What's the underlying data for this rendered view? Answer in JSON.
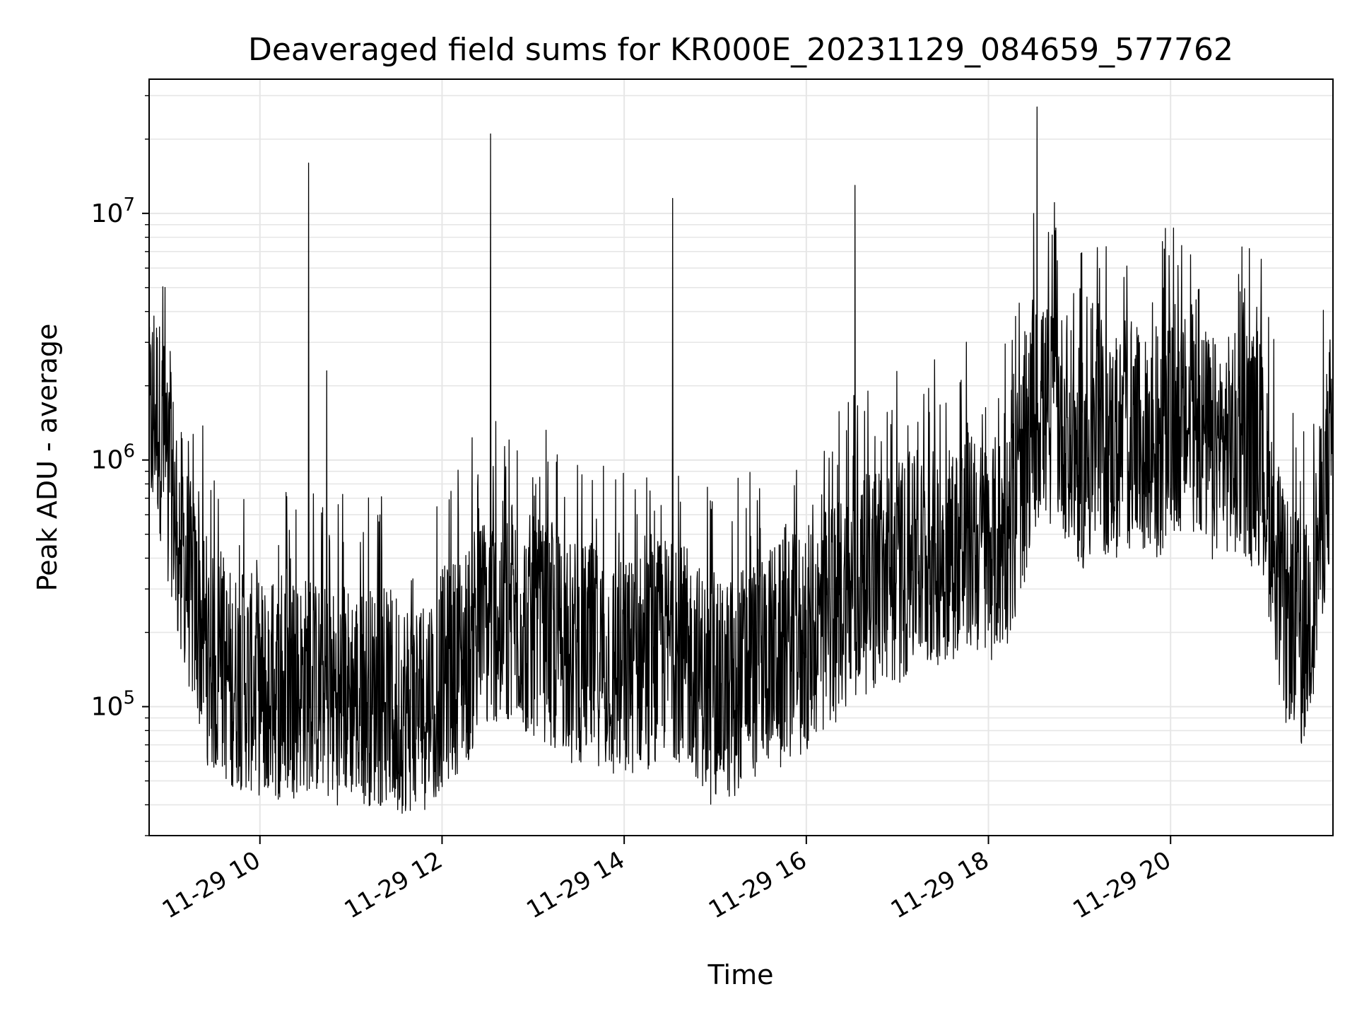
{
  "chart_data": {
    "type": "line",
    "title": "Deaveraged field sums for KR000E_20231129_084659_577762",
    "xlabel": "Time",
    "ylabel": "Peak ADU - average",
    "yscale": "log",
    "ylim": [
      30000,
      35000000
    ],
    "xlim": [
      "11-29 08:47",
      "11-29 21:47"
    ],
    "grid": true,
    "line_color": "#000000",
    "grid_color": "#e6e6e6",
    "x_ticks": [
      {
        "value": "11-29 10:00",
        "label": "11-29 10"
      },
      {
        "value": "11-29 12:00",
        "label": "11-29 12"
      },
      {
        "value": "11-29 14:00",
        "label": "11-29 14"
      },
      {
        "value": "11-29 16:00",
        "label": "11-29 16"
      },
      {
        "value": "11-29 18:00",
        "label": "11-29 18"
      },
      {
        "value": "11-29 20:00",
        "label": "11-29 20"
      }
    ],
    "y_ticks": [
      {
        "value": 100000,
        "base": "10",
        "exp": "5"
      },
      {
        "value": 1000000,
        "base": "10",
        "exp": "6"
      },
      {
        "value": 10000000,
        "base": "10",
        "exp": "7"
      }
    ],
    "x": [
      "11-29 08:47",
      "11-29 08:50",
      "11-29 09:00",
      "11-29 09:15",
      "11-29 09:30",
      "11-29 09:45",
      "11-29 10:00",
      "11-29 10:15",
      "11-29 10:30",
      "11-29 10:45",
      "11-29 11:00",
      "11-29 11:15",
      "11-29 11:30",
      "11-29 11:45",
      "11-29 12:00",
      "11-29 12:15",
      "11-29 12:30",
      "11-29 12:45",
      "11-29 13:00",
      "11-29 13:15",
      "11-29 13:30",
      "11-29 13:45",
      "11-29 14:00",
      "11-29 14:15",
      "11-29 14:30",
      "11-29 14:45",
      "11-29 15:00",
      "11-29 15:15",
      "11-29 15:30",
      "11-29 15:45",
      "11-29 16:00",
      "11-29 16:15",
      "11-29 16:30",
      "11-29 16:45",
      "11-29 17:00",
      "11-29 17:15",
      "11-29 17:30",
      "11-29 17:45",
      "11-29 18:00",
      "11-29 18:15",
      "11-29 18:30",
      "11-29 18:45",
      "11-29 19:00",
      "11-29 19:15",
      "11-29 19:30",
      "11-29 19:45",
      "11-29 20:00",
      "11-29 20:15",
      "11-29 20:30",
      "11-29 20:45",
      "11-29 21:00",
      "11-29 21:15",
      "11-29 21:30",
      "11-29 21:40",
      "11-29 21:47"
    ],
    "y": [
      1200000,
      1800000,
      900000,
      280000,
      140000,
      130000,
      120000,
      115000,
      125000,
      110000,
      115000,
      110000,
      105000,
      100000,
      130000,
      160000,
      230000,
      250000,
      210000,
      190000,
      170000,
      160000,
      140000,
      160000,
      180000,
      150000,
      110000,
      130000,
      160000,
      170000,
      190000,
      240000,
      300000,
      320000,
      340000,
      380000,
      420000,
      480000,
      420000,
      520000,
      1500000,
      1600000,
      1000000,
      1100000,
      1200000,
      1100000,
      1300000,
      1400000,
      1100000,
      1200000,
      1000000,
      250000,
      200000,
      600000,
      1500000
    ],
    "spikes": [
      {
        "x": "11-29 10:32",
        "y": 16000000
      },
      {
        "x": "11-29 10:44",
        "y": 2300000
      },
      {
        "x": "11-29 12:32",
        "y": 21000000
      },
      {
        "x": "11-29 14:32",
        "y": 11500000
      },
      {
        "x": "11-29 16:32",
        "y": 13000000
      },
      {
        "x": "11-29 18:32",
        "y": 27000000
      },
      {
        "x": "11-29 18:44",
        "y": 8500000
      },
      {
        "x": "11-29 20:52",
        "y": 7200000
      }
    ],
    "noise": {
      "upper_factor": 4,
      "lower_factor": 0.4
    }
  }
}
